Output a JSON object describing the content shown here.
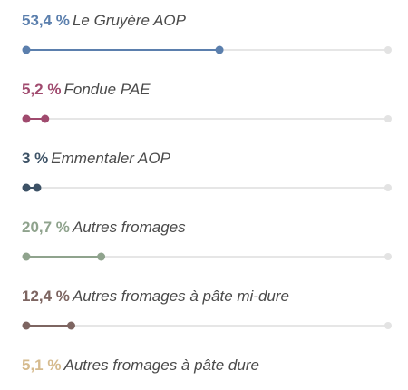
{
  "chart_data": {
    "type": "dotbar",
    "categories": [
      "Le Gruyère AOP",
      "Fondue PAE",
      "Emmentaler AOP",
      "Autres fromages",
      "Autres fromages à pâte mi-dure",
      "Autres fromages à pâte dure"
    ],
    "values": [
      53.4,
      5.2,
      3,
      20.7,
      12.4,
      5.1
    ],
    "value_labels": [
      "53,4 %",
      "5,2 %",
      "3 %",
      "20,7 %",
      "12,4 %",
      "5,1 %"
    ],
    "colors": [
      "#5b7fad",
      "#a04a6e",
      "#3d5266",
      "#8fa38d",
      "#7d6561",
      "#d6bb8e"
    ],
    "xlim": [
      0,
      100
    ]
  }
}
